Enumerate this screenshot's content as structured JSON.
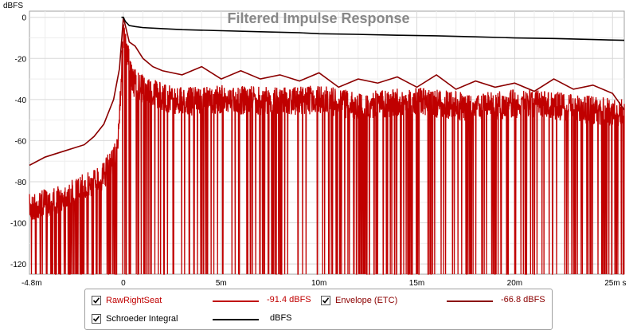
{
  "chart_data": {
    "type": "line",
    "title": "Filtered Impulse Response",
    "ylabel": "dBFS",
    "xlim": [
      -4.8,
      25.6
    ],
    "ylim": [
      -125,
      3
    ],
    "grid": true,
    "x_ticks": [
      {
        "value": -4.8,
        "label": "-4.8m"
      },
      {
        "value": 0,
        "label": "0"
      },
      {
        "value": 5,
        "label": "5m"
      },
      {
        "value": 10,
        "label": "10m"
      },
      {
        "value": 15,
        "label": "15m"
      },
      {
        "value": 20,
        "label": "20m"
      },
      {
        "value": 25,
        "label": "25m s"
      }
    ],
    "y_ticks": [
      {
        "value": 0,
        "label": "0"
      },
      {
        "value": -20,
        "label": "-20"
      },
      {
        "value": -40,
        "label": "-40"
      },
      {
        "value": -60,
        "label": "-60"
      },
      {
        "value": -80,
        "label": "-80"
      },
      {
        "value": -100,
        "label": "-100"
      },
      {
        "value": -120,
        "label": "-120"
      }
    ],
    "series": [
      {
        "name": "RawRightSeat",
        "value_label": "-91.4 dBFS",
        "color": "#c00000",
        "seed": 7,
        "envelope_x": [
          -4.8,
          -3.5,
          -2.0,
          -1.0,
          -0.3,
          0.0,
          0.5,
          1.0,
          2.0,
          3.0,
          5.0,
          8.0,
          10.0,
          12.0,
          15.0,
          18.0,
          20.0,
          22.0,
          25.6
        ],
        "envelope_y": [
          -86,
          -82,
          -76,
          -70,
          -58,
          -2,
          -25,
          -28,
          -32,
          -34,
          -33,
          -34,
          -33,
          -36,
          -34,
          -37,
          -35,
          -36,
          -40
        ]
      },
      {
        "name": "Envelope (ETC)",
        "value_label": "-66.8 dBFS",
        "color": "#8b0000",
        "x": [
          -4.8,
          -4.0,
          -3.0,
          -2.0,
          -1.5,
          -1.0,
          -0.5,
          -0.2,
          0.0,
          0.3,
          0.6,
          1.0,
          1.5,
          2.0,
          3.0,
          4.0,
          5.0,
          6.0,
          7.0,
          8.0,
          9.0,
          10.0,
          11.0,
          12.0,
          13.0,
          14.0,
          15.0,
          16.0,
          17.0,
          18.0,
          19.0,
          20.0,
          21.0,
          22.0,
          23.0,
          24.0,
          25.0,
          25.6
        ],
        "y": [
          -72,
          -68,
          -65,
          -62,
          -58,
          -52,
          -40,
          -25,
          0,
          -12,
          -14,
          -20,
          -24,
          -26,
          -28,
          -24,
          -30,
          -26,
          -30,
          -28,
          -31,
          -27,
          -34,
          -30,
          -32,
          -29,
          -34,
          -28,
          -35,
          -31,
          -34,
          -32,
          -36,
          -30,
          -35,
          -33,
          -37,
          -45
        ]
      },
      {
        "name": "Schroeder Integral",
        "value_label": "dBFS",
        "color": "#000000",
        "x": [
          -0.1,
          0.0,
          0.1,
          0.3,
          0.6,
          1.0,
          2.0,
          3.0,
          5.0,
          7.0,
          9.0,
          10.0,
          12.0,
          14.0,
          16.0,
          18.0,
          20.0,
          22.0,
          24.0,
          25.6
        ],
        "y": [
          0,
          0,
          -2,
          -4,
          -4.5,
          -5,
          -5.5,
          -6,
          -6.5,
          -7,
          -7.5,
          -8,
          -8.3,
          -8.7,
          -9,
          -9.5,
          -10,
          -10.3,
          -10.8,
          -11.2
        ]
      }
    ]
  }
}
